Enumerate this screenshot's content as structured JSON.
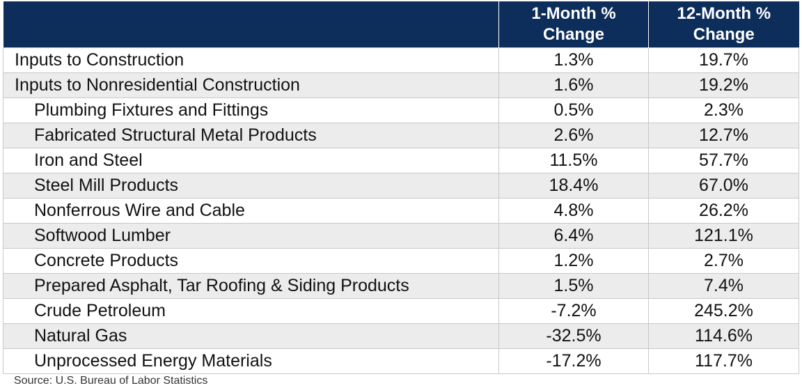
{
  "chart_data": {
    "type": "table",
    "columns": [
      "",
      "1-Month % Change",
      "12-Month % Change"
    ],
    "rows": [
      {
        "label": "Inputs to Construction",
        "level": 0,
        "one_month": "1.3%",
        "twelve_month": "19.7%"
      },
      {
        "label": "Inputs to Nonresidential Construction",
        "level": 0,
        "one_month": "1.6%",
        "twelve_month": "19.2%"
      },
      {
        "label": "Plumbing Fixtures and Fittings",
        "level": 1,
        "one_month": "0.5%",
        "twelve_month": "2.3%"
      },
      {
        "label": "Fabricated Structural Metal Products",
        "level": 1,
        "one_month": "2.6%",
        "twelve_month": "12.7%"
      },
      {
        "label": "Iron and Steel",
        "level": 1,
        "one_month": "11.5%",
        "twelve_month": "57.7%"
      },
      {
        "label": "Steel Mill Products",
        "level": 1,
        "one_month": "18.4%",
        "twelve_month": "67.0%"
      },
      {
        "label": "Nonferrous Wire and Cable",
        "level": 1,
        "one_month": "4.8%",
        "twelve_month": "26.2%"
      },
      {
        "label": "Softwood Lumber",
        "level": 1,
        "one_month": "6.4%",
        "twelve_month": "121.1%"
      },
      {
        "label": "Concrete Products",
        "level": 1,
        "one_month": "1.2%",
        "twelve_month": "2.7%"
      },
      {
        "label": "Prepared Asphalt, Tar Roofing & Siding Products",
        "level": 1,
        "one_month": "1.5%",
        "twelve_month": "7.4%"
      },
      {
        "label": "Crude Petroleum",
        "level": 1,
        "one_month": "-7.2%",
        "twelve_month": "245.2%"
      },
      {
        "label": "Natural Gas",
        "level": 1,
        "one_month": "-32.5%",
        "twelve_month": "114.6%"
      },
      {
        "label": "Unprocessed Energy Materials",
        "level": 1,
        "one_month": "-17.2%",
        "twelve_month": "117.7%"
      }
    ],
    "footer": "Source: U.S. Bureau of Labor Statistics"
  },
  "colors": {
    "header_bg": "#0d2d5a",
    "header_text": "#ffffff",
    "band_bg": "#ececec",
    "border": "#c8c8c8"
  }
}
